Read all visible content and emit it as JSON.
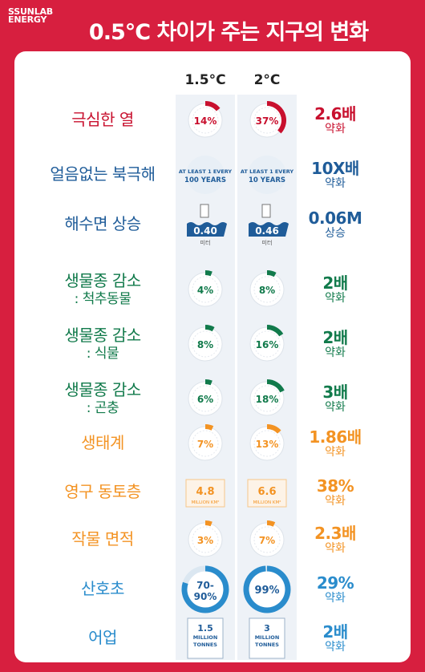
{
  "brand": {
    "line1": "SSUNLAB",
    "line2": "ENERGY"
  },
  "title": "0.5°C 차이가 주는 지구의 변화",
  "columns": [
    "1.5°C",
    "2°C"
  ],
  "colors": {
    "red": "#c8102e",
    "blue": "#1f5c99",
    "green": "#117a4b",
    "orange": "#f39323",
    "sky": "#2a8ccc"
  },
  "chart_data": {
    "type": "table",
    "columns": [
      "1.5°C",
      "2°C"
    ],
    "rows": [
      {
        "label": "극심한 열",
        "sub": "",
        "color": "red",
        "kind": "gauge",
        "v15": "14%",
        "v2": "37%",
        "f15": 0.14,
        "f2": 0.37,
        "result": "2.6배",
        "result_sub": "약화"
      },
      {
        "label": "얼음없는 북극해",
        "sub": "",
        "color": "blue",
        "kind": "text",
        "v15": [
          "AT LEAST 1 EVERY",
          "100 YEARS"
        ],
        "v2": [
          "AT LEAST 1 EVERY",
          "10 YEARS"
        ],
        "result": "10X배",
        "result_sub": "약화"
      },
      {
        "label": "해수면 상승",
        "sub": "",
        "color": "blue",
        "kind": "sea",
        "v15": "0.40",
        "v2": "0.46",
        "unit": "미터",
        "result": "0.06M",
        "result_sub": "상승"
      },
      {
        "label": "생물종 감소",
        "sub": ": 척추동물",
        "color": "green",
        "kind": "gauge",
        "v15": "4%",
        "v2": "8%",
        "f15": 0.04,
        "f2": 0.08,
        "result": "2배",
        "result_sub": "약화"
      },
      {
        "label": "생물종 감소",
        "sub": ": 식물",
        "color": "green",
        "kind": "gauge",
        "v15": "8%",
        "v2": "16%",
        "f15": 0.08,
        "f2": 0.16,
        "result": "2배",
        "result_sub": "약화"
      },
      {
        "label": "생물종 감소",
        "sub": ": 곤충",
        "color": "green",
        "kind": "gauge",
        "v15": "6%",
        "v2": "18%",
        "f15": 0.06,
        "f2": 0.18,
        "result": "3배",
        "result_sub": "약화"
      },
      {
        "label": "생태계",
        "sub": "",
        "color": "orange",
        "kind": "gauge",
        "v15": "7%",
        "v2": "13%",
        "f15": 0.07,
        "f2": 0.13,
        "result": "1.86배",
        "result_sub": "약화"
      },
      {
        "label": "영구 동토층",
        "sub": "",
        "color": "orange",
        "kind": "box",
        "v15": "4.8",
        "v2": "6.6",
        "unit": "MILLION KM²",
        "result": "38%",
        "result_sub": "약화"
      },
      {
        "label": "작물 면적",
        "sub": "",
        "color": "orange",
        "kind": "gauge",
        "v15": "3%",
        "v2": "7%",
        "f15": 0.03,
        "f2": 0.07,
        "result": "2.3배",
        "result_sub": "약화"
      },
      {
        "label": "산호초",
        "sub": "",
        "color": "sky",
        "kind": "ring",
        "v15": [
          "70-",
          "90%"
        ],
        "v2": [
          "99%"
        ],
        "f15": 0.8,
        "f2": 0.99,
        "result": "29%",
        "result_sub": "약화"
      },
      {
        "label": "어업",
        "sub": "",
        "color": "sky",
        "kind": "fish",
        "v15": [
          "1.5",
          "MILLION",
          "TONNES"
        ],
        "v2": [
          "3",
          "MILLION",
          "TONNES"
        ],
        "result": "2배",
        "result_sub": "약화"
      }
    ]
  }
}
